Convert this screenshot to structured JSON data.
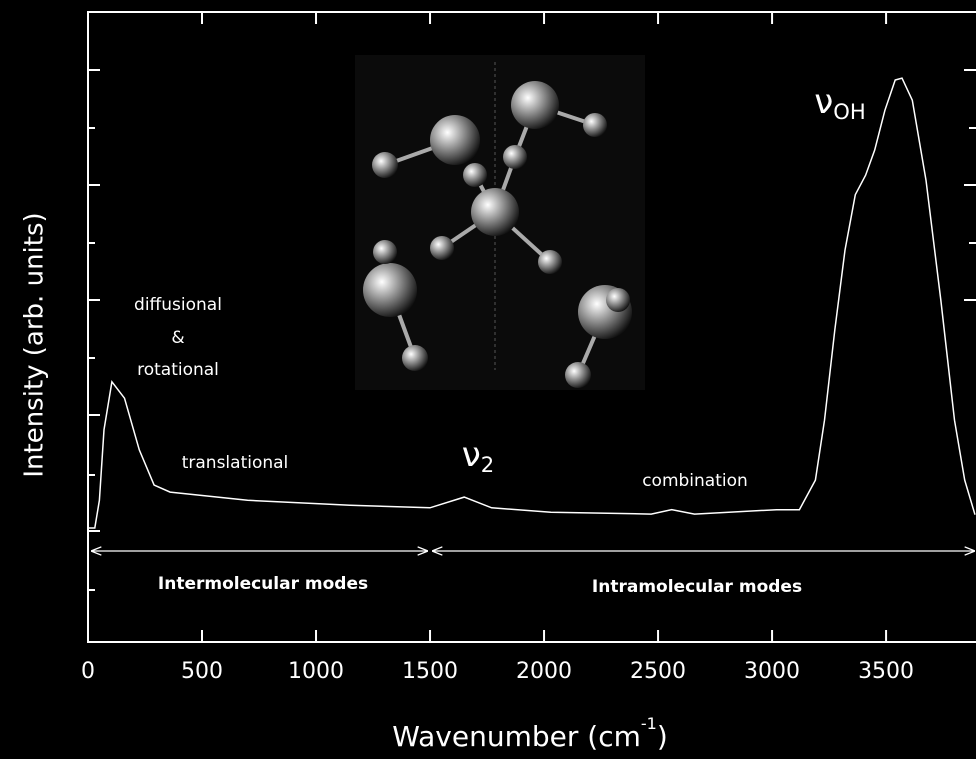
{
  "chart_data": {
    "type": "line",
    "x_label": {
      "text": "Wavenumber (cm",
      "superscript": "-1",
      "suffix": ")"
    },
    "y_label": "Intensity (arb. units)",
    "x": [
      0,
      30,
      50,
      70,
      105,
      160,
      225,
      290,
      360,
      700,
      1150,
      1500,
      1650,
      1770,
      2030,
      2470,
      2560,
      2660,
      3020,
      3120,
      3190,
      3230,
      3275,
      3320,
      3365,
      3410,
      3450,
      3495,
      3540,
      3570,
      3615,
      3675,
      3740,
      3800,
      3845,
      3890
    ],
    "values": [
      0.181,
      0.181,
      0.225,
      0.337,
      0.413,
      0.387,
      0.305,
      0.249,
      0.238,
      0.225,
      0.217,
      0.213,
      0.23,
      0.213,
      0.206,
      0.203,
      0.21,
      0.203,
      0.21,
      0.21,
      0.257,
      0.352,
      0.495,
      0.622,
      0.71,
      0.741,
      0.781,
      0.844,
      0.892,
      0.895,
      0.86,
      0.733,
      0.543,
      0.352,
      0.257,
      0.202
    ],
    "color": "#ffffff",
    "xlim": [
      0,
      3890
    ],
    "xticks": [
      0,
      500,
      1000,
      1500,
      2000,
      2500,
      3000,
      3500
    ],
    "ylim": [
      0,
      1
    ],
    "annotations": [
      {
        "text": "diffusional"
      },
      {
        "text": "&"
      },
      {
        "text": "rotational"
      },
      {
        "text": "translational"
      },
      {
        "text": "ν",
        "subscript": "2"
      },
      {
        "text": "combination"
      },
      {
        "text": "ν",
        "subscript": "OH"
      },
      {
        "text": "Intermolecular modes"
      },
      {
        "text": "Intramolecular modes"
      }
    ]
  }
}
